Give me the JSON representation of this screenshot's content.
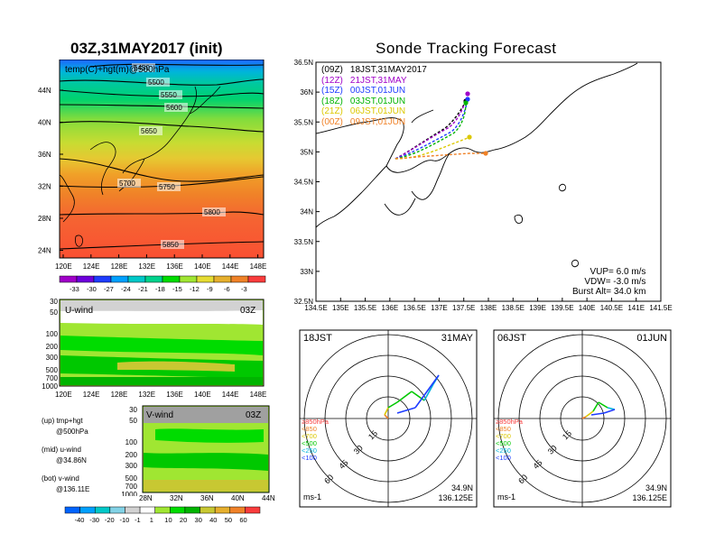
{
  "left_panel": {
    "title": "03Z,31MAY2017 (init)",
    "map_label": "temp(C)+hgt(m)@500hPa",
    "lat_ticks": [
      "44N",
      "40N",
      "36N",
      "32N",
      "28N",
      "24N"
    ],
    "lon_ticks": [
      "120E",
      "124E",
      "128E",
      "132E",
      "136E",
      "140E",
      "144E",
      "148E"
    ],
    "contour_labels": [
      "5450",
      "5500",
      "5550",
      "5600",
      "5650",
      "5700",
      "5750",
      "5800",
      "5850"
    ],
    "temp_colorbar": [
      "-33",
      "-30",
      "-27",
      "-24",
      "-21",
      "-18",
      "-15",
      "-12",
      "-9",
      "-6",
      "-3"
    ],
    "temp_colors": [
      "#a000c8",
      "#6e00dc",
      "#1e3cff",
      "#00a0ff",
      "#00c8c8",
      "#00d28c",
      "#00dc00",
      "#a0e632",
      "#e6dc32",
      "#e6af2d",
      "#f08228",
      "#fa3c3c"
    ],
    "uwind": {
      "label": "U-wind",
      "time": "03Z",
      "p_ticks": [
        "30",
        "50",
        "100",
        "200",
        "300",
        "500",
        "700",
        "1000"
      ],
      "lon_ticks": [
        "120E",
        "124E",
        "128E",
        "132E",
        "136E",
        "140E",
        "144E",
        "148E"
      ]
    },
    "vwind": {
      "label": "V-wind",
      "time": "03Z",
      "p_ticks": [
        "30",
        "50",
        "100",
        "200",
        "300",
        "500",
        "700",
        "1000"
      ],
      "lat_ticks": [
        "28N",
        "32N",
        "36N",
        "40N",
        "44N"
      ]
    },
    "wind_colorbar": [
      "-40",
      "-30",
      "-20",
      "-10",
      "-1",
      "1",
      "10",
      "20",
      "30",
      "40",
      "50",
      "60"
    ],
    "wind_colors": [
      "#0064ff",
      "#00a0ff",
      "#00c8c8",
      "#82d2e6",
      "#d2d2d2",
      "#ffffff",
      "#a0e632",
      "#00dc00",
      "#00b400",
      "#c8c832",
      "#e6af2d",
      "#f08228",
      "#fa3c3c"
    ],
    "legend": [
      {
        "name": "(up) tmp+hgt",
        "detail": "@500hPa"
      },
      {
        "name": "(mid) u-wind",
        "detail": "@34.86N"
      },
      {
        "name": "(bot) v-wind",
        "detail": "@136.11E"
      }
    ]
  },
  "tracking": {
    "title": "Sonde Tracking Forecast",
    "lat_ticks": [
      "36.5N",
      "36N",
      "35.5N",
      "35N",
      "34.5N",
      "34N",
      "33.5N",
      "33N",
      "32.5N"
    ],
    "lon_ticks": [
      "134.5E",
      "135E",
      "135.5E",
      "136E",
      "136.5E",
      "137E",
      "137.5E",
      "138E",
      "138.5E",
      "139E",
      "139.5E",
      "140E",
      "140.5E",
      "141E",
      "141.5E"
    ],
    "launches": [
      {
        "label": "(09Z)",
        "time": "18JST,31MAY2017",
        "color": "#000000"
      },
      {
        "label": "(12Z)",
        "time": "21JST,31MAY",
        "color": "#a000c8"
      },
      {
        "label": "(15Z)",
        "time": "00JST,01JUN",
        "color": "#1e3cff"
      },
      {
        "label": "(18Z)",
        "time": "03JST,01JUN",
        "color": "#00b400"
      },
      {
        "label": "(21Z)",
        "time": "06JST,01JUN",
        "color": "#dcc800"
      },
      {
        "label": "(00Z)",
        "time": "09JST,01JUN",
        "color": "#f08228"
      }
    ],
    "params": {
      "vup": "VUP=  6.0  m/s",
      "vdw": "VDW= -3.0  m/s",
      "burst": "Burst Alt=  34.0  km"
    }
  },
  "polars": [
    {
      "time": "18JST",
      "date": "31MAY",
      "lat": "34.9N",
      "lon": "136.125E",
      "unit": "ms-1",
      "rings": [
        "15",
        "30",
        "45",
        "60"
      ]
    },
    {
      "time": "06JST",
      "date": "01JUN",
      "lat": "34.9N",
      "lon": "136.125E",
      "unit": "ms-1",
      "rings": [
        "15",
        "30",
        "45",
        "60"
      ]
    }
  ],
  "polar_legend": [
    {
      "text": "≥850hPa",
      "color": "#fa3c3c"
    },
    {
      "text": "<850",
      "color": "#f08228"
    },
    {
      "text": "<700",
      "color": "#dcc800"
    },
    {
      "text": "<500",
      "color": "#00c800"
    },
    {
      "text": "<250",
      "color": "#00b4dc"
    },
    {
      "text": "<100",
      "color": "#1e3cff"
    }
  ]
}
